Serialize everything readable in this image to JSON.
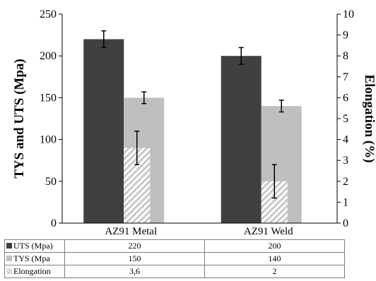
{
  "chart_data": {
    "type": "bar",
    "categories": [
      "AZ91 Metal",
      "AZ91 Weld"
    ],
    "ylabel": "TYS and UTS (Mpa)",
    "y2label": "Elongation (%)",
    "ylim": [
      0,
      250
    ],
    "y2lim": [
      0,
      10
    ],
    "yticks": [
      "0",
      "50",
      "100",
      "150",
      "200",
      "250"
    ],
    "y2ticks": [
      "0",
      "1",
      "2",
      "3",
      "4",
      "5",
      "6",
      "7",
      "8",
      "9",
      "10"
    ],
    "grid": false,
    "legend": "data-table",
    "series": [
      {
        "name": "UTS (Mpa)",
        "axis": "left",
        "values": [
          220,
          200
        ],
        "errors": [
          10,
          10
        ],
        "color": "#404040",
        "labels": [
          "220",
          "200"
        ]
      },
      {
        "name": "TYS (Mpa",
        "axis": "left",
        "values": [
          150,
          140
        ],
        "errors": [
          7,
          7
        ],
        "color": "#bfbfbf",
        "labels": [
          "150",
          "140"
        ]
      },
      {
        "name": "Elongation",
        "axis": "right",
        "values": [
          3.6,
          2
        ],
        "errors": [
          0.8,
          0.8
        ],
        "color": "#bfbfbf",
        "pattern": "diagonal-hatch",
        "labels": [
          "3,6",
          "2"
        ]
      }
    ]
  }
}
